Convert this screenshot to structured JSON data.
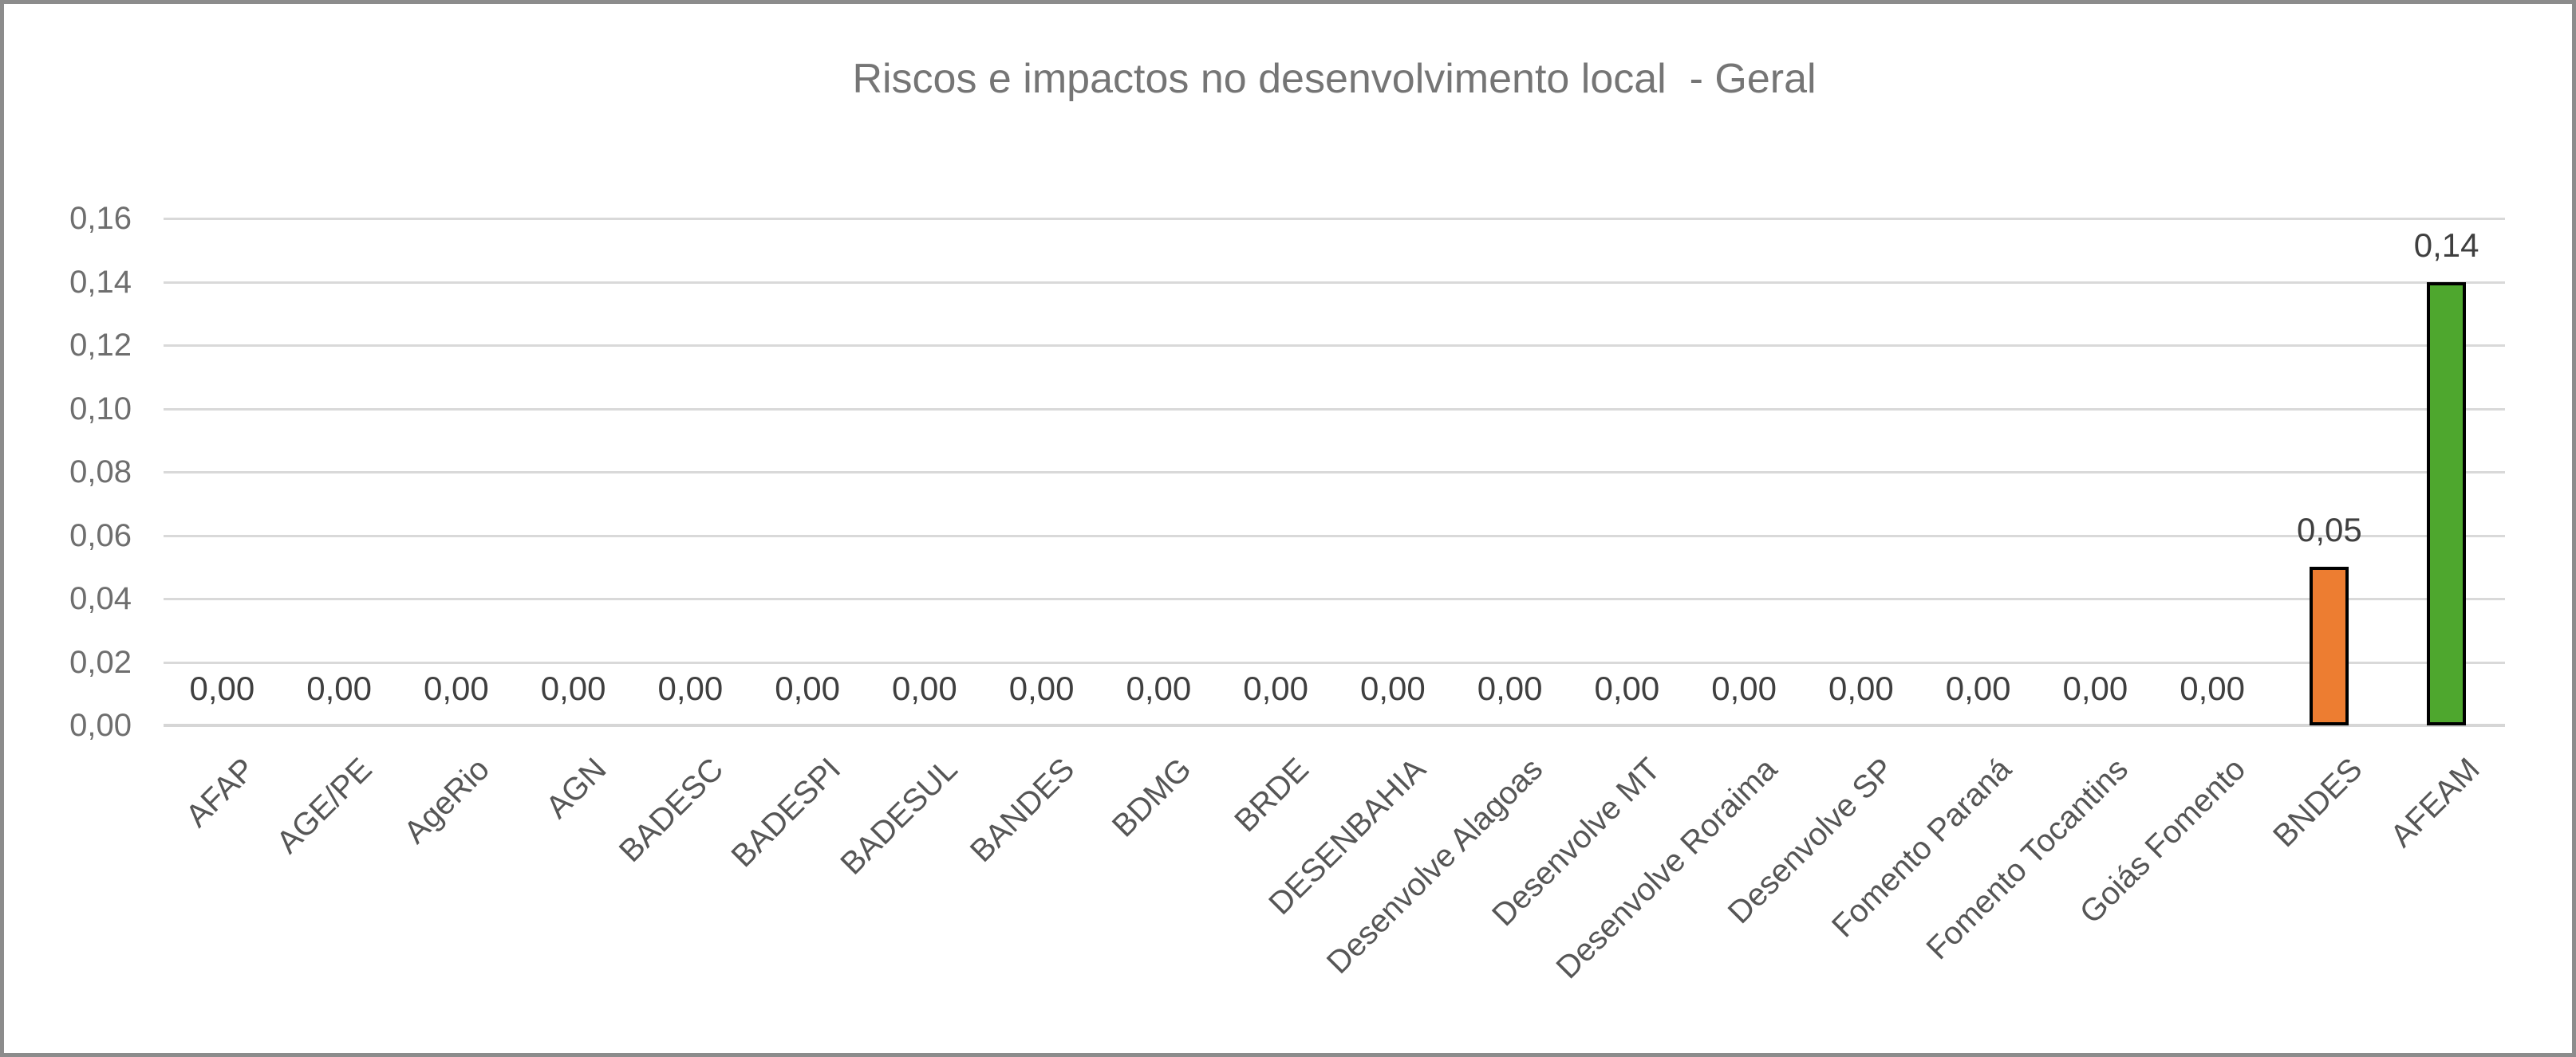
{
  "frame": {
    "border_color": "#8C8C8C",
    "background_color": "#FFFFFF"
  },
  "chart_data": {
    "type": "bar",
    "title": "Riscos e impactos no desenvolvimento local  - Geral",
    "categories": [
      "AFAP",
      "AGE/PE",
      "AgeRio",
      "AGN",
      "BADESC",
      "BADESPI",
      "BADESUL",
      "BANDES",
      "BDMG",
      "BRDE",
      "DESENBAHIA",
      "Desenvolve Alagoas",
      "Desenvolve MT",
      "Desenvolve Roraima",
      "Desenvolve SP",
      "Fomento Paraná",
      "Fomento Tocantins",
      "Goiás Fomento",
      "BNDES",
      "AFEAM"
    ],
    "values": [
      0,
      0,
      0,
      0,
      0,
      0,
      0,
      0,
      0,
      0,
      0,
      0,
      0,
      0,
      0,
      0,
      0,
      0,
      0.05,
      0.14
    ],
    "value_labels": [
      "0,00",
      "0,00",
      "0,00",
      "0,00",
      "0,00",
      "0,00",
      "0,00",
      "0,00",
      "0,00",
      "0,00",
      "0,00",
      "0,00",
      "0,00",
      "0,00",
      "0,00",
      "0,00",
      "0,00",
      "0,00",
      "0,05",
      "0,14"
    ],
    "bar_colors": [
      null,
      null,
      null,
      null,
      null,
      null,
      null,
      null,
      null,
      null,
      null,
      null,
      null,
      null,
      null,
      null,
      null,
      null,
      "#ED7D31",
      "#4EA72E"
    ],
    "bar_border_color": "#000000",
    "ytick_labels": [
      "0,00",
      "0,02",
      "0,04",
      "0,06",
      "0,08",
      "0,10",
      "0,12",
      "0,14",
      "0,16"
    ],
    "ytick_values": [
      0,
      0.02,
      0.04,
      0.06,
      0.08,
      0.1,
      0.12,
      0.14,
      0.16
    ],
    "ylim": [
      0,
      0.16
    ],
    "grid": true,
    "gridline_color": "#D9D9D9",
    "axis_line_color": "#D6D6D6",
    "legend": "none",
    "xlabel": "",
    "ylabel": "",
    "decimal_separator": ",",
    "title_color": "#757575",
    "ytick_color": "#6E6E6E",
    "xtick_color": "#565656",
    "data_label_color": "#3F3F3F"
  }
}
